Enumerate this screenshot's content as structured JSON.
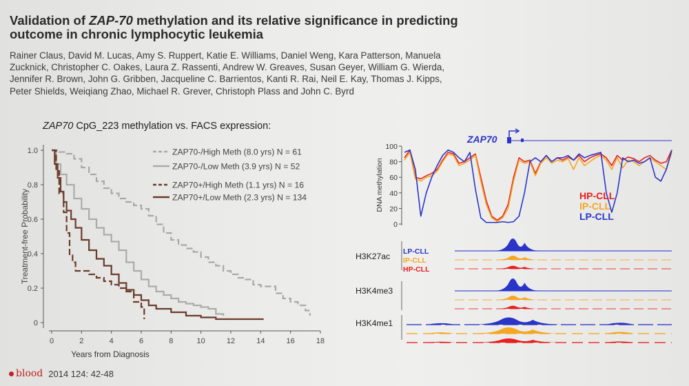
{
  "slide": {
    "title_prefix": "Validation of ",
    "title_gene": "ZAP-70",
    "title_rest": " methylation and its relative significance in predicting outcome in chronic lymphocytic leukemia",
    "authors": "Rainer Claus, David M. Lucas, Amy S. Ruppert, Katie E. Williams, Daniel Weng, Kara Patterson, Manuela Zucknick, Christopher C. Oakes, Laura Z. Rassenti, Andrew W. Greaves, Susan Geyer, William G. Wierda, Jennifer R. Brown, John G. Gribben, Jacqueline C. Barrientos, Kanti R. Rai, Neil E. Kay, Thomas J. Kipps, Peter Shields, Weiqiang Zhao, Michael R. Grever, Christoph Plass and John C. Byrd",
    "subtitle_gene": "ZAP70",
    "subtitle_rest": " CpG_223 methylation vs. FACS expression:",
    "journal": "blood",
    "citation": "2014 124: 42-48"
  },
  "chart_data": [
    {
      "type": "line",
      "title": "ZAP70 CpG_223 methylation vs. FACS expression:",
      "xlabel": "Years from Diagnosis",
      "ylabel": "Treatment-free Probability",
      "xlim": [
        0,
        18
      ],
      "ylim": [
        0,
        1
      ],
      "xticks": [
        "0",
        "2",
        "4",
        "6",
        "8",
        "10",
        "12",
        "14",
        "16",
        "18"
      ],
      "yticks": [
        "0",
        "0.2",
        "0.4",
        "0.6",
        "0.8",
        "1.0"
      ],
      "series": [
        {
          "name": "ZAP70-/High Meth (8.0 yrs) N = 61",
          "style": "dashed",
          "color": "#a8a8a8",
          "x": [
            0,
            0.5,
            1.0,
            1.5,
            2.0,
            2.5,
            3.0,
            3.5,
            4.0,
            4.5,
            5.0,
            5.5,
            6.0,
            6.5,
            7.0,
            7.5,
            8.0,
            8.5,
            9.0,
            9.5,
            10.0,
            10.5,
            11.0,
            11.5,
            12.0,
            12.5,
            13.0,
            13.5,
            14.0,
            14.5,
            15.0,
            15.5,
            16.0,
            16.5,
            17.0,
            17.3
          ],
          "y": [
            1.0,
            0.99,
            0.98,
            0.95,
            0.9,
            0.86,
            0.82,
            0.78,
            0.75,
            0.72,
            0.7,
            0.68,
            0.66,
            0.62,
            0.57,
            0.52,
            0.48,
            0.45,
            0.43,
            0.41,
            0.38,
            0.35,
            0.33,
            0.3,
            0.28,
            0.26,
            0.25,
            0.22,
            0.21,
            0.21,
            0.17,
            0.14,
            0.12,
            0.1,
            0.07,
            0.04
          ]
        },
        {
          "name": "ZAP70-/Low Meth (3.9 yrs) N = 52",
          "style": "solid",
          "color": "#ababab",
          "x": [
            0,
            0.3,
            0.6,
            1.0,
            1.5,
            2.0,
            2.5,
            3.0,
            3.5,
            4.0,
            4.5,
            5.0,
            5.5,
            6.0,
            6.5,
            7.0,
            7.5,
            8.0,
            8.5,
            9.0,
            9.5,
            10.0,
            10.5,
            11.0,
            11.5
          ],
          "y": [
            1.0,
            0.92,
            0.86,
            0.8,
            0.72,
            0.66,
            0.6,
            0.55,
            0.51,
            0.47,
            0.42,
            0.35,
            0.3,
            0.25,
            0.21,
            0.18,
            0.16,
            0.14,
            0.12,
            0.11,
            0.1,
            0.09,
            0.08,
            0.05,
            0.04
          ]
        },
        {
          "name": "ZAP70+/High Meth (1.1 yrs) N = 16",
          "style": "dashed",
          "color": "#6a3b2a",
          "x": [
            0,
            0.3,
            0.5,
            0.8,
            1.0,
            1.2,
            1.4,
            1.6,
            2.0,
            2.5,
            3.0,
            3.5,
            4.0,
            4.5,
            5.0,
            5.5,
            6.0,
            6.2
          ],
          "y": [
            1.0,
            0.88,
            0.75,
            0.64,
            0.52,
            0.39,
            0.35,
            0.3,
            0.3,
            0.28,
            0.26,
            0.24,
            0.22,
            0.2,
            0.18,
            0.12,
            0.09,
            0.02
          ]
        },
        {
          "name": "ZAP70+/Low Meth (2.3 yrs) N = 134",
          "style": "solid",
          "color": "#6a3b2a",
          "x": [
            0,
            0.2,
            0.4,
            0.6,
            0.8,
            1.0,
            1.3,
            1.6,
            2.0,
            2.5,
            3.0,
            3.5,
            4.0,
            4.5,
            5.0,
            5.5,
            6.0,
            6.5,
            7.0,
            8.0,
            9.0,
            10.0,
            11.0,
            12.0,
            13.0,
            14.2
          ],
          "y": [
            1.0,
            0.92,
            0.84,
            0.76,
            0.7,
            0.65,
            0.6,
            0.55,
            0.48,
            0.42,
            0.37,
            0.33,
            0.28,
            0.23,
            0.19,
            0.16,
            0.13,
            0.1,
            0.08,
            0.06,
            0.04,
            0.03,
            0.02,
            0.02,
            0.02,
            0.02
          ]
        }
      ]
    },
    {
      "type": "line",
      "title": "ZAP70",
      "ylabel": "DNA methylation",
      "ylim": [
        0,
        100
      ],
      "yticks": [
        "0",
        "20",
        "40",
        "60",
        "80",
        "100"
      ],
      "x": [
        0,
        1,
        2,
        3,
        4,
        5,
        6,
        7,
        8,
        9,
        10,
        11,
        12,
        13,
        14,
        15,
        16,
        17,
        18,
        19,
        20,
        21,
        22,
        23,
        24,
        25,
        26,
        27,
        28,
        29,
        30,
        31,
        32,
        33,
        34,
        35,
        36,
        37,
        38,
        39,
        40,
        41,
        42,
        43,
        44,
        45,
        46,
        47,
        48,
        49
      ],
      "series": [
        {
          "name": "HP-CLL",
          "color": "#e8201f",
          "values": [
            85,
            95,
            60,
            58,
            62,
            65,
            70,
            82,
            92,
            90,
            78,
            80,
            85,
            90,
            60,
            30,
            10,
            5,
            10,
            25,
            60,
            85,
            80,
            82,
            65,
            80,
            88,
            80,
            85,
            82,
            86,
            82,
            88,
            80,
            85,
            88,
            90,
            85,
            75,
            88,
            82,
            86,
            84,
            80,
            85,
            88,
            82,
            78,
            80,
            95
          ]
        },
        {
          "name": "IP-CLL",
          "color": "#f5a623",
          "values": [
            82,
            92,
            58,
            55,
            60,
            62,
            68,
            80,
            90,
            88,
            75,
            78,
            82,
            88,
            55,
            25,
            8,
            3,
            8,
            20,
            55,
            82,
            78,
            80,
            62,
            78,
            85,
            78,
            82,
            80,
            84,
            70,
            85,
            75,
            80,
            85,
            88,
            82,
            70,
            85,
            72,
            82,
            80,
            75,
            80,
            85,
            80,
            75,
            70,
            92
          ]
        },
        {
          "name": "LP-CLL",
          "color": "#2a35c8",
          "values": [
            92,
            95,
            70,
            10,
            40,
            60,
            75,
            88,
            95,
            92,
            85,
            80,
            92,
            45,
            8,
            2,
            2,
            2,
            3,
            2,
            3,
            10,
            40,
            80,
            85,
            80,
            88,
            80,
            85,
            85,
            88,
            82,
            90,
            85,
            88,
            90,
            92,
            40,
            15,
            40,
            85,
            80,
            82,
            78,
            80,
            85,
            60,
            55,
            70,
            95
          ]
        }
      ],
      "tracks": [
        {
          "mark": "H3K27ac",
          "samples": [
            "LP-CLL",
            "IP-CLL",
            "HP-CLL"
          ]
        },
        {
          "mark": "H3K4me3",
          "samples": [
            "LP-CLL",
            "IP-CLL",
            "HP-CLL"
          ]
        },
        {
          "mark": "H3K4me1",
          "samples": [
            "LP-CLL",
            "IP-CLL",
            "HP-CLL"
          ]
        }
      ]
    }
  ]
}
